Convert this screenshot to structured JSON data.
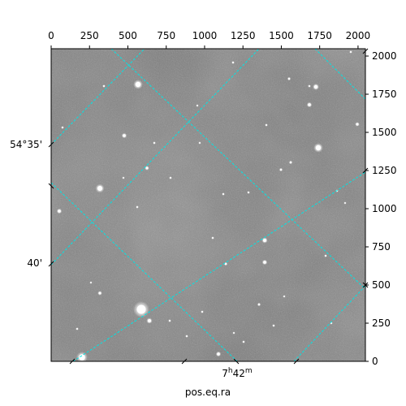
{
  "chart_data": {
    "type": "image",
    "top_axis": {
      "ticks": [
        "0",
        "250",
        "500",
        "750",
        "1000",
        "1250",
        "1500",
        "1750",
        "2000"
      ],
      "range": [
        0,
        2048
      ]
    },
    "right_axis": {
      "ticks": [
        "0",
        "250",
        "500",
        "750",
        "1000",
        "1250",
        "1500",
        "1750",
        "2000"
      ],
      "range": [
        0,
        2048
      ]
    },
    "left_axis": {
      "ticks": [
        "54°35'",
        "40'"
      ]
    },
    "bottom_axis": {
      "ticks": [
        "7h42m"
      ],
      "label": "pos.eq.ra"
    },
    "grid_color": "#00e5e5",
    "image_tone": "#808080"
  }
}
